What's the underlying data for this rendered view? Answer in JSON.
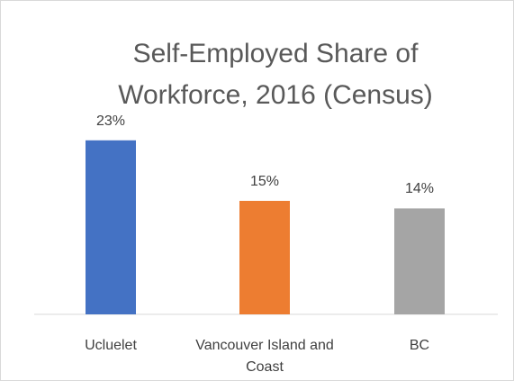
{
  "chart_data": {
    "type": "bar",
    "title": "Self-Employed Share of Workforce, 2016 (Census)",
    "categories": [
      "Ucluelet",
      "Vancouver Island and Coast",
      "BC"
    ],
    "values": [
      23,
      15,
      14
    ],
    "value_labels": [
      "23%",
      "15%",
      "14%"
    ],
    "colors": [
      "#4472c4",
      "#ed7d31",
      "#a5a5a5"
    ]
  }
}
